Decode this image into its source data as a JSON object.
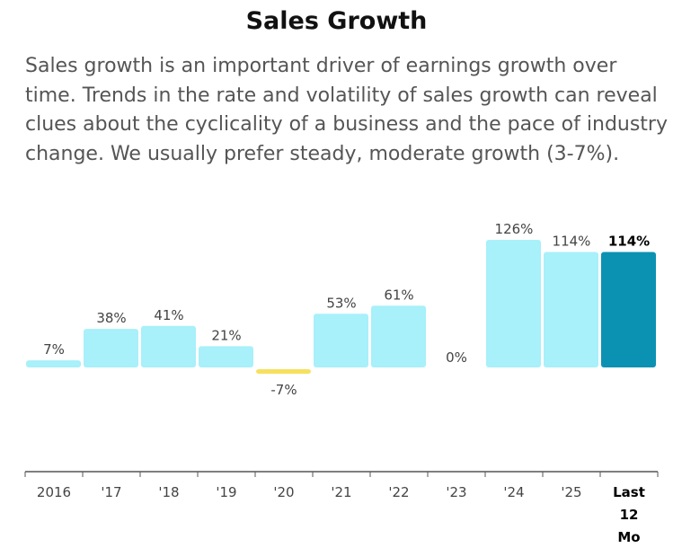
{
  "title": "Sales Growth",
  "description": "Sales growth is an important driver of earnings growth over time. Trends in the rate and volatility of sales growth can reveal clues about the cyclicality of a business and the pace of industry change. We usually prefer steady, moderate growth (3-7%).",
  "colors": {
    "positive_bar": "#a8f0fa",
    "negative_bar": "#f6e05e",
    "highlight_bar": "#0b92b3",
    "axis": "#555555",
    "label": "#444444"
  },
  "chart_data": {
    "type": "bar",
    "categories": [
      "2016",
      "'17",
      "'18",
      "'19",
      "'20",
      "'21",
      "'22",
      "'23",
      "'24",
      "'25",
      "Last 12 Mo"
    ],
    "values": [
      7,
      38,
      41,
      21,
      -7,
      53,
      61,
      0,
      126,
      114,
      114
    ],
    "value_labels": [
      "7%",
      "38%",
      "41%",
      "21%",
      "-7%",
      "53%",
      "61%",
      "0%",
      "126%",
      "114%",
      "114%"
    ],
    "highlight_index": 10,
    "ylim": [
      -100,
      126
    ],
    "xlabel": "",
    "ylabel": "",
    "grid": false
  }
}
